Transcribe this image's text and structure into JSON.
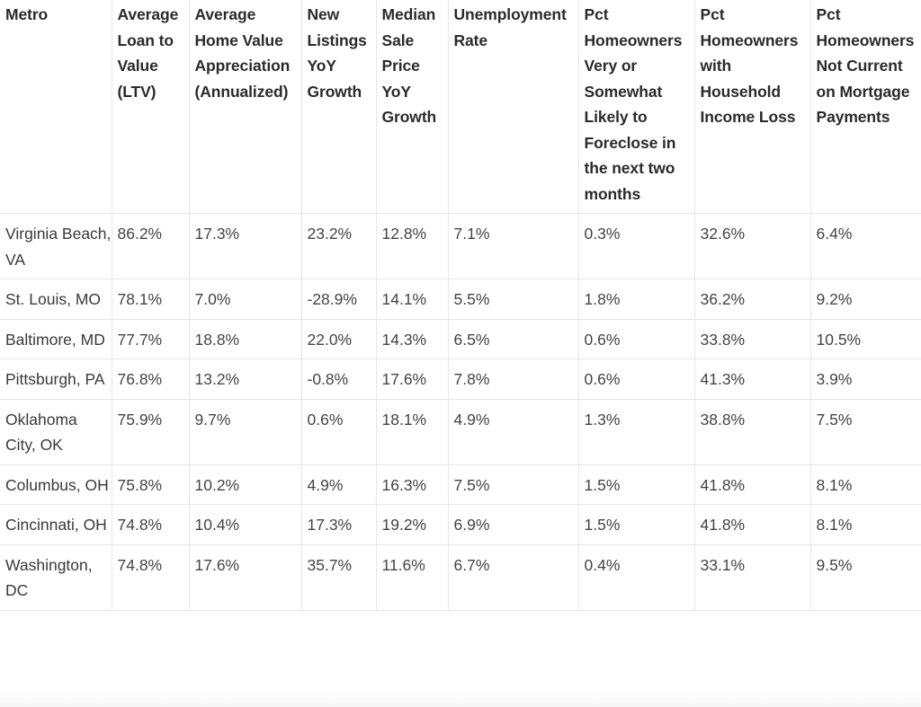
{
  "table": {
    "columns": [
      "Metro",
      "Average Loan to Value (LTV)",
      "Average Home Value Appreciation (Annualized)",
      "New Listings YoY Growth",
      "Median Sale Price YoY Growth",
      "Unemployment Rate",
      "Pct Homeowners Very or Somewhat Likely to Foreclose in the next two months",
      "Pct Homeowners with Household Income Loss",
      "Pct Homeowners Not Current on Mortgage Payments"
    ],
    "rows": [
      [
        "Virginia Beach, VA",
        "86.2%",
        "17.3%",
        "23.2%",
        "12.8%",
        "7.1%",
        "0.3%",
        "32.6%",
        "6.4%"
      ],
      [
        "St. Louis, MO",
        "78.1%",
        "7.0%",
        "-28.9%",
        "14.1%",
        "5.5%",
        "1.8%",
        "36.2%",
        "9.2%"
      ],
      [
        "Baltimore, MD",
        "77.7%",
        "18.8%",
        "22.0%",
        "14.3%",
        "6.5%",
        "0.6%",
        "33.8%",
        "10.5%"
      ],
      [
        "Pittsburgh, PA",
        "76.8%",
        "13.2%",
        "-0.8%",
        "17.6%",
        "7.8%",
        "0.6%",
        "41.3%",
        "3.9%"
      ],
      [
        "Oklahoma City, OK",
        "75.9%",
        "9.7%",
        "0.6%",
        "18.1%",
        "4.9%",
        "1.3%",
        "38.8%",
        "7.5%"
      ],
      [
        "Columbus, OH",
        "75.8%",
        "10.2%",
        "4.9%",
        "16.3%",
        "7.5%",
        "1.5%",
        "41.8%",
        "8.1%"
      ],
      [
        "Cincinnati, OH",
        "74.8%",
        "10.4%",
        "17.3%",
        "19.2%",
        "6.9%",
        "1.5%",
        "41.8%",
        "8.1%"
      ],
      [
        "Washington, DC",
        "74.8%",
        "17.6%",
        "35.7%",
        "11.6%",
        "6.7%",
        "0.4%",
        "33.1%",
        "9.5%"
      ]
    ]
  }
}
